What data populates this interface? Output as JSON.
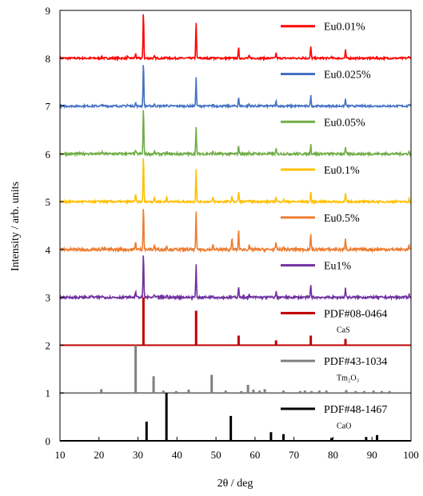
{
  "chart_data": {
    "type": "line",
    "xlabel": "2θ / deg",
    "ylabel": "Intensity / arb. units",
    "xlim": [
      10,
      100
    ],
    "ylim": [
      0,
      9
    ],
    "x_ticks": [
      10,
      20,
      30,
      40,
      50,
      60,
      70,
      80,
      90,
      100
    ],
    "y_ticks": [
      0,
      1,
      2,
      3,
      4,
      5,
      6,
      7,
      8,
      9
    ],
    "grid": false,
    "legend": "inline-right",
    "series": [
      {
        "name": "Eu0.01%",
        "color": "#ff0000",
        "baseline": 8,
        "kind": "pattern",
        "noise": 0.02,
        "peaks": [
          [
            20.8,
            0.03
          ],
          [
            27.3,
            0.03
          ],
          [
            29.4,
            0.1
          ],
          [
            31.4,
            1.0
          ],
          [
            34.2,
            0.04
          ],
          [
            37.4,
            0.03
          ],
          [
            44.9,
            0.77
          ],
          [
            49.2,
            0.04
          ],
          [
            55.8,
            0.22
          ],
          [
            58.5,
            0.05
          ],
          [
            65.4,
            0.12
          ],
          [
            72.3,
            0.03
          ],
          [
            74.3,
            0.25
          ],
          [
            79.5,
            0.03
          ],
          [
            83.2,
            0.17
          ],
          [
            91.0,
            0.02
          ],
          [
            99.5,
            0.05
          ]
        ]
      },
      {
        "name": "Eu0.025%",
        "color": "#4472c4",
        "baseline": 7,
        "kind": "pattern",
        "noise": 0.02,
        "peaks": [
          [
            20.8,
            0.03
          ],
          [
            27.3,
            0.03
          ],
          [
            29.4,
            0.07
          ],
          [
            31.4,
            0.95
          ],
          [
            34.2,
            0.04
          ],
          [
            37.4,
            0.03
          ],
          [
            44.9,
            0.6
          ],
          [
            49.2,
            0.04
          ],
          [
            55.8,
            0.19
          ],
          [
            58.5,
            0.04
          ],
          [
            65.4,
            0.1
          ],
          [
            74.3,
            0.22
          ],
          [
            83.2,
            0.15
          ],
          [
            99.5,
            0.04
          ]
        ]
      },
      {
        "name": "Eu0.05%",
        "color": "#70ad47",
        "baseline": 6,
        "kind": "pattern",
        "noise": 0.025,
        "peaks": [
          [
            16.8,
            0.03
          ],
          [
            20.8,
            0.03
          ],
          [
            27.3,
            0.03
          ],
          [
            29.4,
            0.08
          ],
          [
            31.4,
            0.98
          ],
          [
            34.2,
            0.04
          ],
          [
            37.4,
            0.03
          ],
          [
            44.9,
            0.55
          ],
          [
            49.2,
            0.04
          ],
          [
            55.8,
            0.18
          ],
          [
            58.5,
            0.04
          ],
          [
            65.4,
            0.1
          ],
          [
            74.3,
            0.2
          ],
          [
            83.2,
            0.12
          ],
          [
            99.5,
            0.05
          ]
        ]
      },
      {
        "name": "Eu0.1%",
        "color": "#ffc000",
        "baseline": 5,
        "kind": "pattern",
        "noise": 0.02,
        "peaks": [
          [
            20.8,
            0.03
          ],
          [
            29.4,
            0.17
          ],
          [
            31.4,
            0.98
          ],
          [
            34.2,
            0.1
          ],
          [
            37.4,
            0.1
          ],
          [
            44.9,
            0.7
          ],
          [
            49.2,
            0.1
          ],
          [
            54.1,
            0.12
          ],
          [
            55.8,
            0.22
          ],
          [
            58.5,
            0.05
          ],
          [
            65.4,
            0.1
          ],
          [
            67.4,
            0.04
          ],
          [
            74.3,
            0.22
          ],
          [
            83.2,
            0.17
          ],
          [
            99.5,
            0.05
          ]
        ]
      },
      {
        "name": "Eu0.5%",
        "color": "#ed7d31",
        "baseline": 4,
        "kind": "pattern",
        "noise": 0.03,
        "peaks": [
          [
            20.8,
            0.03
          ],
          [
            29.4,
            0.18
          ],
          [
            31.4,
            0.95
          ],
          [
            34.2,
            0.1
          ],
          [
            37.4,
            0.1
          ],
          [
            44.9,
            0.78
          ],
          [
            49.2,
            0.1
          ],
          [
            54.1,
            0.25
          ],
          [
            55.8,
            0.42
          ],
          [
            58.5,
            0.08
          ],
          [
            65.4,
            0.15
          ],
          [
            67.4,
            0.05
          ],
          [
            74.3,
            0.32
          ],
          [
            83.2,
            0.25
          ],
          [
            99.5,
            0.08
          ]
        ]
      },
      {
        "name": "Eu1%",
        "color": "#7030a0",
        "baseline": 3,
        "kind": "pattern",
        "noise": 0.025,
        "peaks": [
          [
            18.0,
            0.05
          ],
          [
            20.8,
            0.03
          ],
          [
            29.4,
            0.15
          ],
          [
            31.4,
            0.95
          ],
          [
            34.2,
            0.05
          ],
          [
            37.4,
            0.04
          ],
          [
            44.9,
            0.68
          ],
          [
            49.2,
            0.05
          ],
          [
            55.8,
            0.25
          ],
          [
            58.5,
            0.05
          ],
          [
            65.4,
            0.12
          ],
          [
            74.3,
            0.27
          ],
          [
            83.2,
            0.2
          ],
          [
            99.5,
            0.06
          ]
        ]
      },
      {
        "name": "PDF#08-0464",
        "sub": "CaS",
        "color": "#c00000",
        "baseline": 2,
        "kind": "sticks",
        "peaks": [
          [
            31.4,
            1.0
          ],
          [
            44.9,
            0.72
          ],
          [
            55.8,
            0.2
          ],
          [
            65.4,
            0.1
          ],
          [
            74.3,
            0.2
          ],
          [
            83.2,
            0.13
          ]
        ]
      },
      {
        "name": "PDF#43-1034",
        "sub": "Tm₂O₃",
        "color": "#7f7f7f",
        "baseline": 1,
        "kind": "sticks",
        "peaks": [
          [
            20.6,
            0.08
          ],
          [
            29.4,
            1.0
          ],
          [
            34.0,
            0.35
          ],
          [
            36.5,
            0.05
          ],
          [
            39.8,
            0.04
          ],
          [
            43.0,
            0.07
          ],
          [
            48.9,
            0.38
          ],
          [
            52.5,
            0.05
          ],
          [
            56.5,
            0.04
          ],
          [
            58.2,
            0.17
          ],
          [
            59.6,
            0.07
          ],
          [
            61.2,
            0.05
          ],
          [
            62.5,
            0.08
          ],
          [
            67.3,
            0.05
          ],
          [
            71.6,
            0.04
          ],
          [
            72.8,
            0.05
          ],
          [
            74.5,
            0.04
          ],
          [
            76.5,
            0.05
          ],
          [
            78.3,
            0.05
          ],
          [
            83.4,
            0.06
          ],
          [
            85.8,
            0.04
          ],
          [
            88.0,
            0.04
          ],
          [
            90.4,
            0.05
          ],
          [
            92.5,
            0.04
          ],
          [
            94.5,
            0.04
          ]
        ]
      },
      {
        "name": "PDF#48-1467",
        "sub": "CaO",
        "color": "#000000",
        "baseline": 0,
        "kind": "sticks",
        "peaks": [
          [
            32.2,
            0.4
          ],
          [
            37.3,
            1.0
          ],
          [
            53.8,
            0.52
          ],
          [
            64.1,
            0.18
          ],
          [
            67.3,
            0.14
          ],
          [
            79.6,
            0.06
          ],
          [
            88.5,
            0.08
          ],
          [
            91.3,
            0.12
          ]
        ]
      }
    ]
  }
}
